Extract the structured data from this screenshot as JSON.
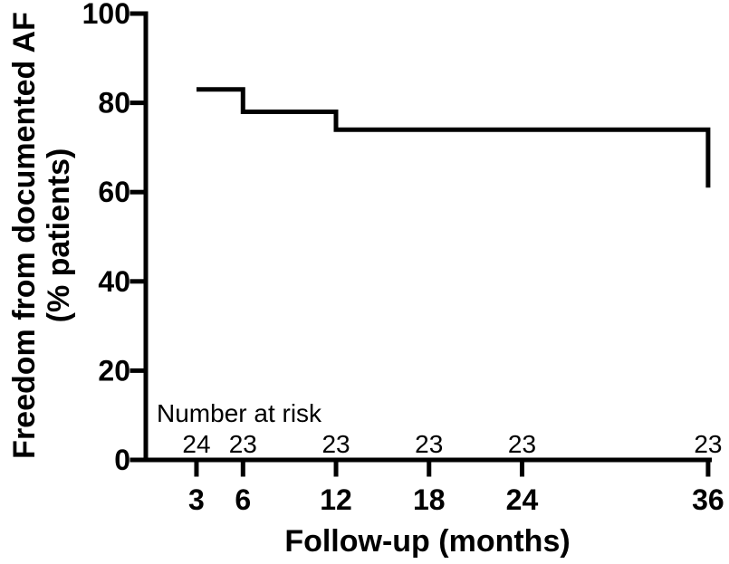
{
  "figure": {
    "background": "#ffffff",
    "ink_color": "#000000"
  },
  "chart_data": {
    "type": "line",
    "subtype": "kaplan-meier-step",
    "title": "",
    "xlabel": "Follow-up (months)",
    "ylabel_lines": [
      "Freedom from documented AF",
      "(% patients)"
    ],
    "xlim": [
      0,
      36
    ],
    "ylim": [
      0,
      100
    ],
    "xticks": [
      3,
      6,
      12,
      18,
      24,
      36
    ],
    "yticks": [
      0,
      20,
      40,
      60,
      80,
      100
    ],
    "grid": false,
    "legend": null,
    "series": [
      {
        "name": "Freedom from documented AF",
        "color": "#000000",
        "step_points": [
          {
            "x": 3,
            "y": 83
          },
          {
            "x": 6,
            "y": 83
          },
          {
            "x": 6,
            "y": 78
          },
          {
            "x": 12,
            "y": 78
          },
          {
            "x": 12,
            "y": 74
          },
          {
            "x": 36,
            "y": 74
          },
          {
            "x": 36,
            "y": 61
          }
        ]
      }
    ],
    "number_at_risk": {
      "label": "Number at risk",
      "times": [
        3,
        6,
        12,
        18,
        24,
        36
      ],
      "counts": [
        24,
        23,
        23,
        23,
        23,
        23
      ]
    }
  }
}
